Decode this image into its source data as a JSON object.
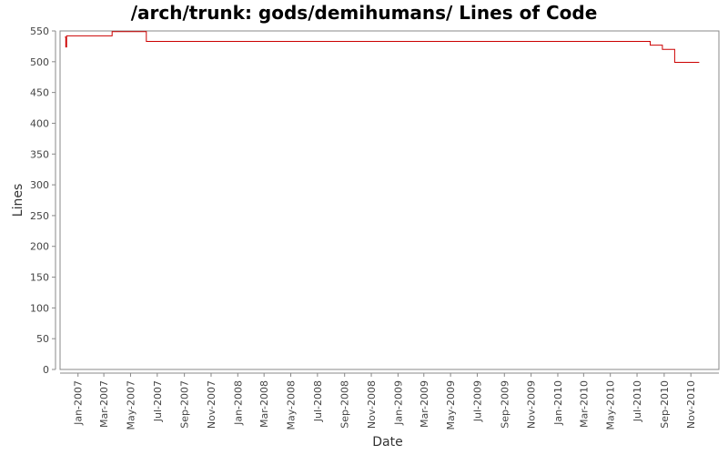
{
  "chart_data": {
    "type": "line",
    "title": "/arch/trunk: gods/demihumans/ Lines of Code",
    "xlabel": "Date",
    "ylabel": "Lines",
    "ylim": [
      0,
      550
    ],
    "yticks": [
      0,
      50,
      100,
      150,
      200,
      250,
      300,
      350,
      400,
      450,
      500,
      550
    ],
    "xlim": [
      "2006-11-21",
      "2011-01-04"
    ],
    "xticks": [
      "2007-01-01",
      "2007-03-01",
      "2007-05-01",
      "2007-07-01",
      "2007-09-01",
      "2007-11-01",
      "2008-01-01",
      "2008-03-01",
      "2008-05-01",
      "2008-07-01",
      "2008-09-01",
      "2008-11-01",
      "2009-01-01",
      "2009-03-01",
      "2009-05-01",
      "2009-07-01",
      "2009-09-01",
      "2009-11-01",
      "2010-01-01",
      "2010-03-01",
      "2010-05-01",
      "2010-07-01",
      "2010-09-01",
      "2010-11-01"
    ],
    "xtick_labels": [
      "Jan-2007",
      "Mar-2007",
      "May-2007",
      "Jul-2007",
      "Sep-2007",
      "Nov-2007",
      "Jan-2008",
      "Mar-2008",
      "May-2008",
      "Jul-2008",
      "Sep-2008",
      "Nov-2008",
      "Jan-2009",
      "Mar-2009",
      "May-2009",
      "Jul-2009",
      "Sep-2009",
      "Nov-2009",
      "Jan-2010",
      "Mar-2010",
      "May-2010",
      "Jul-2010",
      "Sep-2010",
      "Nov-2010"
    ],
    "grid": false,
    "legend": "none",
    "series": [
      {
        "color": "#cc0000",
        "step": true,
        "x": [
          "2006-12-02",
          "2006-12-04",
          "2006-12-06",
          "2007-03-20",
          "2007-06-06",
          "2010-07-31",
          "2010-08-28",
          "2010-09-25",
          "2010-11-20"
        ],
        "y": [
          540,
          524,
          542,
          549,
          533,
          527,
          520,
          499,
          499
        ]
      }
    ]
  }
}
